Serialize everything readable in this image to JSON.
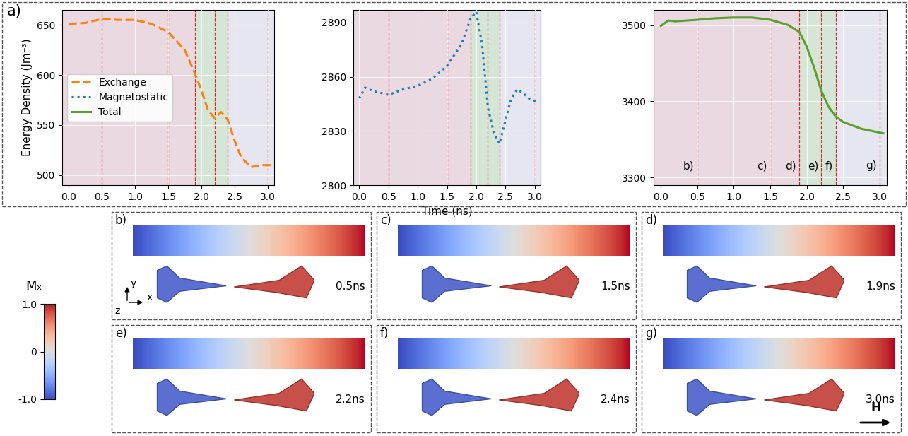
{
  "chart_data": [
    {
      "type": "line",
      "ylabel": "Energy Density (Jm⁻³)",
      "legend": "center left",
      "grid": true,
      "x": [
        0.0,
        0.25,
        0.5,
        0.75,
        1.0,
        1.25,
        1.5,
        1.75,
        1.9,
        2.0,
        2.1,
        2.2,
        2.3,
        2.4,
        2.5,
        2.6,
        2.75,
        2.9,
        3.05
      ],
      "series": [
        {
          "name": "Exchange",
          "color": "#ff7f0e",
          "line_style": "dashed",
          "values": [
            651,
            652,
            656,
            655,
            655,
            651,
            643,
            625,
            602,
            585,
            565,
            557,
            563,
            555,
            535,
            518,
            508,
            510,
            510
          ]
        }
      ],
      "xlim": [
        -0.1,
        3.1
      ],
      "xticks": [
        0.0,
        0.5,
        1.0,
        1.5,
        2.0,
        2.5,
        3.0
      ],
      "ylim": [
        490,
        665
      ],
      "yticks": [
        500,
        550,
        600,
        650
      ]
    },
    {
      "type": "line",
      "xlabel": "Time (ns)",
      "grid": true,
      "x": [
        0.0,
        0.1,
        0.25,
        0.5,
        0.75,
        1.0,
        1.25,
        1.5,
        1.75,
        1.9,
        2.0,
        2.1,
        2.2,
        2.3,
        2.4,
        2.5,
        2.6,
        2.7,
        2.8,
        2.9,
        3.05
      ],
      "series": [
        {
          "name": "Magnetostatic",
          "color": "#1f77b4",
          "line_style": "dotted",
          "values": [
            2848,
            2854,
            2852,
            2850,
            2853,
            2855,
            2859,
            2866,
            2878,
            2892,
            2896,
            2878,
            2843,
            2829,
            2823,
            2836,
            2848,
            2853,
            2851,
            2848,
            2846
          ]
        }
      ],
      "xlim": [
        -0.1,
        3.1
      ],
      "xticks": [
        0.0,
        0.5,
        1.0,
        1.5,
        2.0,
        2.5,
        3.0
      ],
      "ylim": [
        2800,
        2897
      ],
      "yticks": [
        2800,
        2830,
        2860,
        2890
      ]
    },
    {
      "type": "line",
      "grid": true,
      "x": [
        0.0,
        0.1,
        0.2,
        0.5,
        0.75,
        1.0,
        1.25,
        1.5,
        1.75,
        1.9,
        2.0,
        2.1,
        2.2,
        2.3,
        2.4,
        2.5,
        2.75,
        3.0,
        3.05
      ],
      "series": [
        {
          "name": "Total",
          "color": "#5aa02c",
          "line_style": "solid",
          "values": [
            3499,
            3506,
            3505,
            3507,
            3509,
            3510,
            3510,
            3507,
            3500,
            3491,
            3472,
            3445,
            3414,
            3393,
            3380,
            3373,
            3364,
            3359,
            3358
          ]
        }
      ],
      "xlim": [
        -0.1,
        3.1
      ],
      "xticks": [
        0.0,
        0.5,
        1.0,
        1.5,
        2.0,
        2.5,
        3.0
      ],
      "ylim": [
        3290,
        3520
      ],
      "yticks": [
        3300,
        3400,
        3500
      ]
    }
  ],
  "panel_label": "a)",
  "phases": [
    {
      "start": -0.1,
      "end": 1.9,
      "color": "#ead9e0"
    },
    {
      "start": 1.9,
      "end": 2.4,
      "color": "#d6e6d6"
    },
    {
      "start": 2.4,
      "end": 3.1,
      "color": "#e6e6f0"
    }
  ],
  "time_markers": {
    "times": [
      0.5,
      1.5,
      1.9,
      2.2,
      2.4,
      3.0
    ],
    "labels": [
      "b)",
      "c)",
      "d)",
      "e)",
      "f)",
      "g)"
    ],
    "color": "#d62728"
  },
  "snapshots": [
    {
      "label": "b)",
      "time": "0.5ns"
    },
    {
      "label": "c)",
      "time": "1.5ns"
    },
    {
      "label": "d)",
      "time": "1.9ns"
    },
    {
      "label": "e)",
      "time": "2.2ns"
    },
    {
      "label": "f)",
      "time": "2.4ns"
    },
    {
      "label": "g)",
      "time": "3.0ns"
    }
  ],
  "axes_triad": {
    "up": "y",
    "right": "x",
    "out": "z"
  },
  "field_label": "H",
  "colorbar": {
    "label": "Mₓ",
    "range": [
      -1.0,
      1.0
    ],
    "ticks": [
      1.0,
      0,
      -1.0
    ]
  }
}
